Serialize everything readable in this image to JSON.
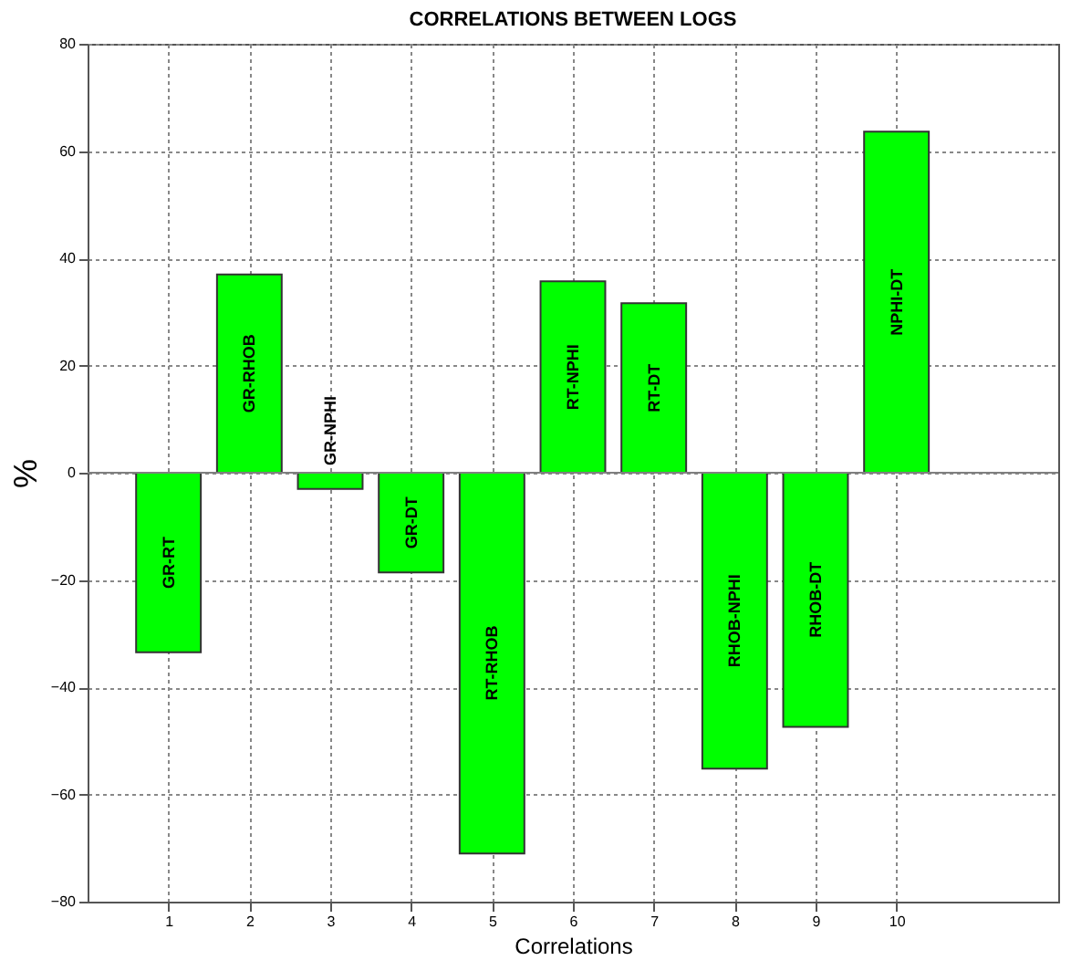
{
  "chart_data": {
    "type": "bar",
    "title": "CORRELATIONS BETWEEN LOGS",
    "xlabel": "Correlations",
    "ylabel": "%",
    "x": [
      1,
      2,
      3,
      4,
      5,
      6,
      7,
      8,
      9,
      10
    ],
    "values": [
      -33.5,
      37,
      -3,
      -18.6,
      -71,
      35.7,
      31.6,
      -55.2,
      -47.4,
      63.6
    ],
    "color": "#00ff00",
    "xlim": [
      0,
      12
    ],
    "xticks": [
      1,
      2,
      3,
      4,
      5,
      6,
      7,
      8,
      9,
      10
    ],
    "ylim": [
      -80,
      80
    ],
    "yticks": [
      -80,
      -60,
      -40,
      -20,
      0,
      20,
      40,
      60,
      80
    ],
    "grid": true,
    "ref_lines": [
      {
        "axis": "y",
        "value": 0,
        "color": "#808080"
      }
    ],
    "annotations": [
      "GR-RT",
      "GR-RHOB",
      "GR-NPHI",
      "GR-DT",
      "RT-RHOB",
      "RT-NPHI",
      "RT-DT",
      "RHOB-NPHI",
      "RHOB-DT",
      "NPHI-DT"
    ]
  }
}
